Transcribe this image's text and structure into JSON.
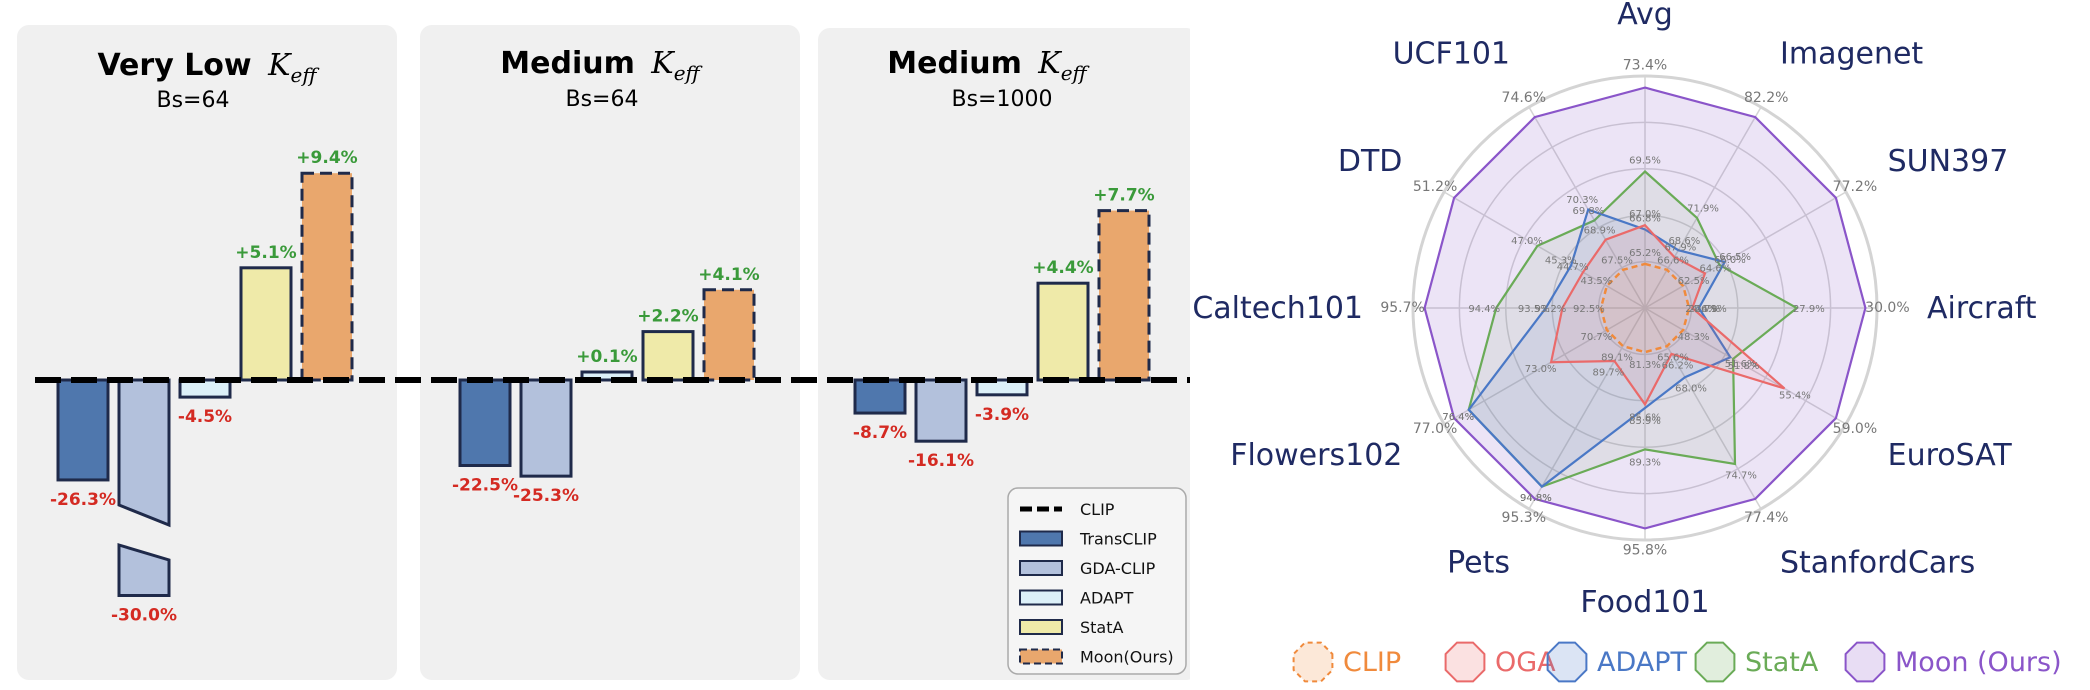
{
  "chart_data": [
    {
      "type": "bar",
      "panels": [
        {
          "title": "Very Low",
          "title_sub": "eff",
          "subtitle": "Bs=64",
          "bars": [
            {
              "series": "TransCLIP",
              "value": -26.3,
              "label": "-26.3%"
            },
            {
              "series": "GDA-CLIP",
              "value": -30.0,
              "label": "-30.0%"
            },
            {
              "series": "ADAPT",
              "value": -4.5,
              "label": "-4.5%"
            },
            {
              "series": "StatA",
              "value": 5.1,
              "label": "+5.1%"
            },
            {
              "series": "Moon(Ours)",
              "value": 9.4,
              "label": "+9.4%"
            }
          ]
        },
        {
          "title": "Medium",
          "title_sub": "eff",
          "subtitle": "Bs=64",
          "bars": [
            {
              "series": "TransCLIP",
              "value": -22.5,
              "label": "-22.5%"
            },
            {
              "series": "GDA-CLIP",
              "value": -25.3,
              "label": "-25.3%"
            },
            {
              "series": "ADAPT",
              "value": 0.1,
              "label": "+0.1%"
            },
            {
              "series": "StatA",
              "value": 2.2,
              "label": "+2.2%"
            },
            {
              "series": "Moon(Ours)",
              "value": 4.1,
              "label": "+4.1%"
            }
          ]
        },
        {
          "title": "Medium",
          "title_sub": "eff",
          "subtitle": "Bs=1000",
          "bars": [
            {
              "series": "TransCLIP",
              "value": -8.7,
              "label": "-8.7%"
            },
            {
              "series": "GDA-CLIP",
              "value": -16.1,
              "label": "-16.1%"
            },
            {
              "series": "ADAPT",
              "value": -3.9,
              "label": "-3.9%"
            },
            {
              "series": "StatA",
              "value": 4.4,
              "label": "+4.4%"
            },
            {
              "series": "Moon(Ours)",
              "value": 7.7,
              "label": "+7.7%"
            }
          ]
        }
      ],
      "baseline": "CLIP",
      "legend": [
        "CLIP",
        "TransCLIP",
        "GDA-CLIP",
        "ADAPT",
        "StatA",
        "Moon(Ours)"
      ],
      "legend_position": "bottom-right",
      "colors": {
        "TransCLIP": "#4f77ad",
        "GDA-CLIP": "#b3c1dc",
        "ADAPT": "#dcf0f8",
        "StatA": "#efeaa9",
        "Moon(Ours)": "#e9a76d"
      }
    },
    {
      "type": "radar",
      "axes": [
        "Avg",
        "Imagenet",
        "SUN397",
        "Aircraft",
        "EuroSAT",
        "StanfordCars",
        "Food101",
        "Pets",
        "Flowers102",
        "Caltech101",
        "DTD",
        "UCF101"
      ],
      "axis_max": [
        "73.4%",
        "82.2%",
        "77.2%",
        "30.0%",
        "59.0%",
        "77.4%",
        "95.8%",
        "95.3%",
        "77.0%",
        "95.7%",
        "51.2%",
        "74.6%"
      ],
      "series": [
        {
          "name": "CLIP",
          "color": "#f08a3c",
          "values": [
            65.2,
            66.6,
            62.5,
            24.6,
            48.3,
            65.6,
            81.3,
            89.1,
            70.7,
            92.5,
            43.5,
            67.5
          ],
          "labels": [
            "65.2%",
            "66.6%",
            "62.5%",
            "24.6%",
            "48.3%",
            "65.6%",
            "81.3%",
            "89.1%",
            "70.7%",
            "92.5%",
            "43.5%",
            "67.5%"
          ]
        },
        {
          "name": "OGA",
          "color": "#ea6a6a",
          "values": [
            67.0,
            67.9,
            64.6,
            24.7,
            55.4,
            66.2,
            85.6,
            89.7,
            73.0,
            93.2,
            44.7,
            68.9
          ],
          "labels": [
            "67.0%",
            "67.9%",
            "64.6%",
            "24.7%",
            "55.4%",
            "66.2%",
            "85.6%",
            "89.7%",
            "73.0%",
            "93.2%",
            "44.7%",
            "68.9%"
          ]
        },
        {
          "name": "ADAPT",
          "color": "#4a78c6",
          "values": [
            66.8,
            68.6,
            66.5,
            24.9,
            51.6,
            68.0,
            85.9,
            94.8,
            76.4,
            93.5,
            45.3,
            70.3
          ],
          "labels": [
            "66.8%",
            "68.6%",
            "66.5%",
            "24.9%",
            "51.6%",
            "68.0%",
            "85.9%",
            "94.8%",
            "76.4%",
            "93.5%",
            "45.3%",
            "70.3%"
          ]
        },
        {
          "name": "StatA",
          "color": "#6aab57",
          "values": [
            69.5,
            71.9,
            66.0,
            27.9,
            51.8,
            74.7,
            89.3,
            94.8,
            76.4,
            94.4,
            47.0,
            69.8
          ],
          "labels": [
            "69.5%",
            "71.9%",
            "66.0%",
            "27.9%",
            "51.8%",
            "74.7%",
            "89.3%",
            "94.8%",
            "76.4%",
            "94.4%",
            "47.0%",
            "69.8%"
          ]
        },
        {
          "name": "Moon (Ours)",
          "color": "#8a55c9",
          "values": [
            73.4,
            82.2,
            77.2,
            30.0,
            59.0,
            77.4,
            95.8,
            95.3,
            77.0,
            95.7,
            51.2,
            74.6
          ],
          "labels": [
            "73.4%",
            "82.2%",
            "77.2%",
            "30.0%",
            "59.0%",
            "77.4%",
            "95.8%",
            "95.3%",
            "77.0%",
            "95.7%",
            "51.2%",
            "74.6%"
          ]
        }
      ],
      "legend_position": "bottom"
    }
  ]
}
